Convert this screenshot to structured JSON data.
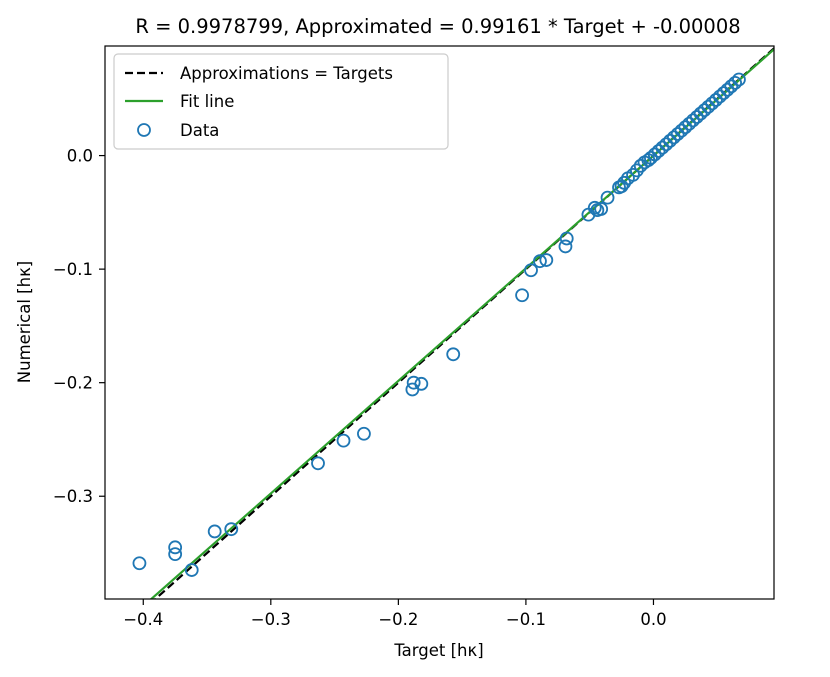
{
  "chart_data": {
    "type": "scatter",
    "title": "R = 0.9978799, Approximated = 0.99161 * Target + -0.00008",
    "xlabel": "Target [hκ]",
    "ylabel": "Numerical [hκ]",
    "xlim": [
      -0.43,
      0.0945
    ],
    "ylim": [
      -0.3905,
      0.0965
    ],
    "xticks": [
      -0.4,
      -0.3,
      -0.2,
      -0.1,
      0.0
    ],
    "xtick_labels": [
      "−0.4",
      "−0.3",
      "−0.2",
      "−0.1",
      "0.0"
    ],
    "yticks": [
      -0.3,
      -0.2,
      -0.1,
      0.0
    ],
    "ytick_labels": [
      "−0.3",
      "−0.2",
      "−0.1",
      "0.0"
    ],
    "grid": false,
    "legend_position": "top-left",
    "legend": [
      {
        "label": "Approximations = Targets",
        "style": "dashed-line",
        "color": "#000000"
      },
      {
        "label": "Fit line",
        "style": "line",
        "color": "#2ca02c"
      },
      {
        "label": "Data",
        "style": "open-circle-marker",
        "color": "#1f77b4"
      }
    ],
    "identity_line": {
      "slope": 1.0,
      "intercept": 0.0,
      "color": "#000000"
    },
    "fit_line": {
      "slope": 0.99161,
      "intercept": -8e-05,
      "color": "#2ca02c"
    },
    "series": [
      {
        "name": "Data",
        "color": "#1f77b4",
        "x": [
          -0.403,
          -0.375,
          -0.375,
          -0.362,
          -0.344,
          -0.331,
          -0.263,
          -0.243,
          -0.227,
          -0.189,
          -0.188,
          -0.182,
          -0.157,
          -0.103,
          -0.096,
          -0.089,
          -0.084,
          -0.069,
          -0.068,
          -0.051,
          -0.046,
          -0.044,
          -0.041,
          -0.036,
          -0.027,
          -0.025,
          -0.023,
          -0.02,
          -0.016,
          -0.013,
          -0.01,
          -0.007,
          -0.004,
          -0.002,
          0.001,
          0.004,
          0.007,
          0.01,
          0.013,
          0.016,
          0.019,
          0.022,
          0.025,
          0.028,
          0.031,
          0.034,
          0.037,
          0.04,
          0.043,
          0.046,
          0.049,
          0.052,
          0.055,
          0.058,
          0.061,
          0.064,
          0.067
        ],
        "y": [
          -0.359,
          -0.345,
          -0.351,
          -0.365,
          -0.331,
          -0.329,
          -0.271,
          -0.251,
          -0.245,
          -0.206,
          -0.2,
          -0.201,
          -0.175,
          -0.123,
          -0.101,
          -0.093,
          -0.092,
          -0.08,
          -0.073,
          -0.052,
          -0.046,
          -0.048,
          -0.047,
          -0.037,
          -0.028,
          -0.027,
          -0.024,
          -0.02,
          -0.017,
          -0.013,
          -0.009,
          -0.006,
          -0.004,
          -0.002,
          0.001,
          0.004,
          0.007,
          0.01,
          0.013,
          0.016,
          0.019,
          0.022,
          0.025,
          0.028,
          0.031,
          0.034,
          0.037,
          0.04,
          0.043,
          0.046,
          0.049,
          0.052,
          0.055,
          0.058,
          0.061,
          0.064,
          0.067
        ]
      }
    ]
  }
}
